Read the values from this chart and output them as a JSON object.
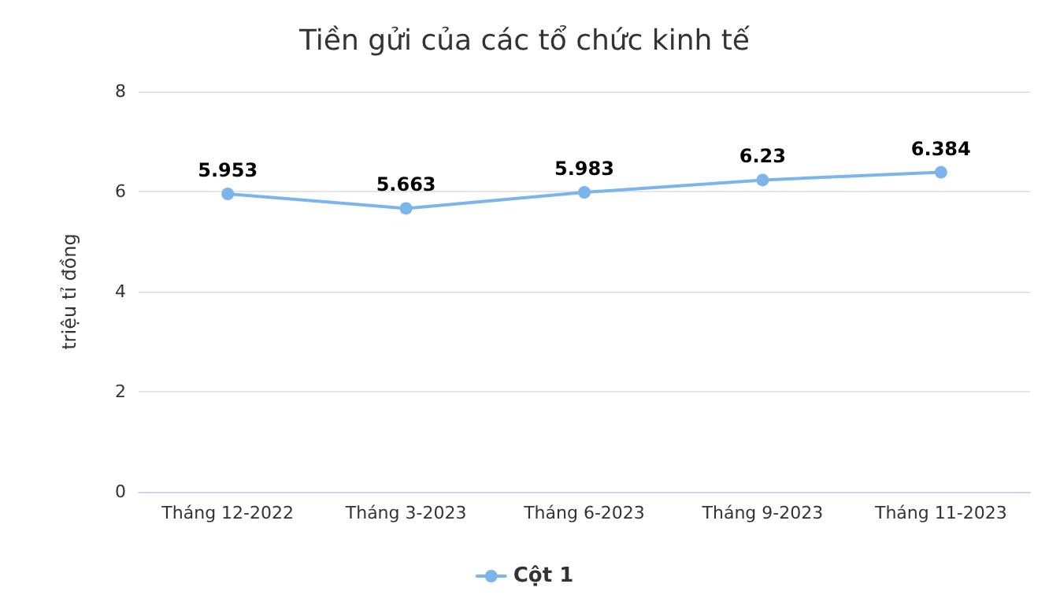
{
  "chart_data": {
    "type": "line",
    "title": "Tiền gửi của các tổ chức kinh tế",
    "ylabel": "triệu tỉ đồng",
    "categories": [
      "Tháng 12-2022",
      "Tháng 3-2023",
      "Tháng 6-2023",
      "Tháng 9-2023",
      "Tháng 11-2023"
    ],
    "series": [
      {
        "name": "Cột 1",
        "color": "#7cb5ec",
        "values": [
          5.953,
          5.663,
          5.983,
          6.23,
          6.384
        ]
      }
    ],
    "ylim": [
      0,
      8
    ],
    "yticks": [
      0,
      2,
      4,
      6,
      8
    ],
    "grid": "y",
    "legend": "bottom",
    "data_labels": true,
    "marker": "circle",
    "line_style": "solid"
  }
}
